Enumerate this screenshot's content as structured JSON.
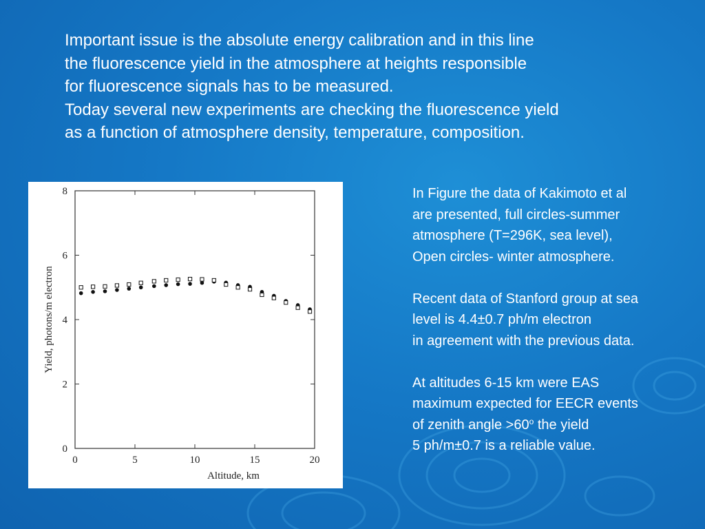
{
  "intro": {
    "lines": [
      "Important issue is the absolute energy calibration and in this line",
      "the fluorescence yield in the atmosphere at heights responsible",
      "for fluorescence signals has to be measured.",
      "Today several new experiments are checking the fluorescence yield",
      "as a function of atmosphere density, temperature, composition."
    ]
  },
  "side": {
    "para1": [
      "In Figure the data of Kakimoto et al",
      "are presented, full circles-summer",
      "atmosphere (T=296K, sea level),",
      "Open circles- winter atmosphere."
    ],
    "para2": [
      "Recent data of Stanford group at sea",
      "level is 4.4±0.7 ph/m electron",
      "in agreement with the previous data."
    ],
    "para3": {
      "line1": "At altitudes 6-15 km were EAS",
      "line2": "maximum expected for EECR events",
      "line3_pre": "of zenith angle >60",
      "line3_sup": "o",
      "line3_post": " the yield",
      "line4": "5 ph/m±0.7  is a reliable value."
    }
  },
  "chart_data": {
    "type": "scatter",
    "xlabel": "Altitude, km",
    "ylabel": "Yield, photons/m electron",
    "xlim": [
      0,
      20
    ],
    "ylim": [
      0,
      8
    ],
    "xticks": [
      0,
      5,
      10,
      15,
      20
    ],
    "yticks": [
      0,
      2,
      4,
      6,
      8
    ],
    "series": [
      {
        "marker": "filled-circle",
        "x": [
          0.5,
          1.5,
          2.5,
          3.5,
          4.5,
          5.5,
          6.6,
          7.6,
          8.6,
          9.6,
          10.6,
          11.6,
          12.6,
          13.6,
          14.6,
          15.6,
          16.6,
          17.6,
          18.6,
          19.6
        ],
        "y": [
          4.82,
          4.86,
          4.88,
          4.92,
          4.96,
          5.0,
          5.04,
          5.07,
          5.1,
          5.11,
          5.14,
          5.18,
          5.15,
          5.07,
          5.02,
          4.86,
          4.74,
          4.58,
          4.45,
          4.32
        ]
      },
      {
        "marker": "open-square",
        "x": [
          0.5,
          1.5,
          2.5,
          3.5,
          4.5,
          5.5,
          6.6,
          7.6,
          8.6,
          9.6,
          10.6,
          11.6,
          12.6,
          13.6,
          14.6,
          15.6,
          16.6,
          17.6,
          18.6,
          19.6
        ],
        "y": [
          5.0,
          5.02,
          5.03,
          5.06,
          5.09,
          5.14,
          5.19,
          5.22,
          5.24,
          5.26,
          5.25,
          5.22,
          5.09,
          5.0,
          4.94,
          4.77,
          4.67,
          4.53,
          4.37,
          4.25
        ]
      }
    ]
  }
}
